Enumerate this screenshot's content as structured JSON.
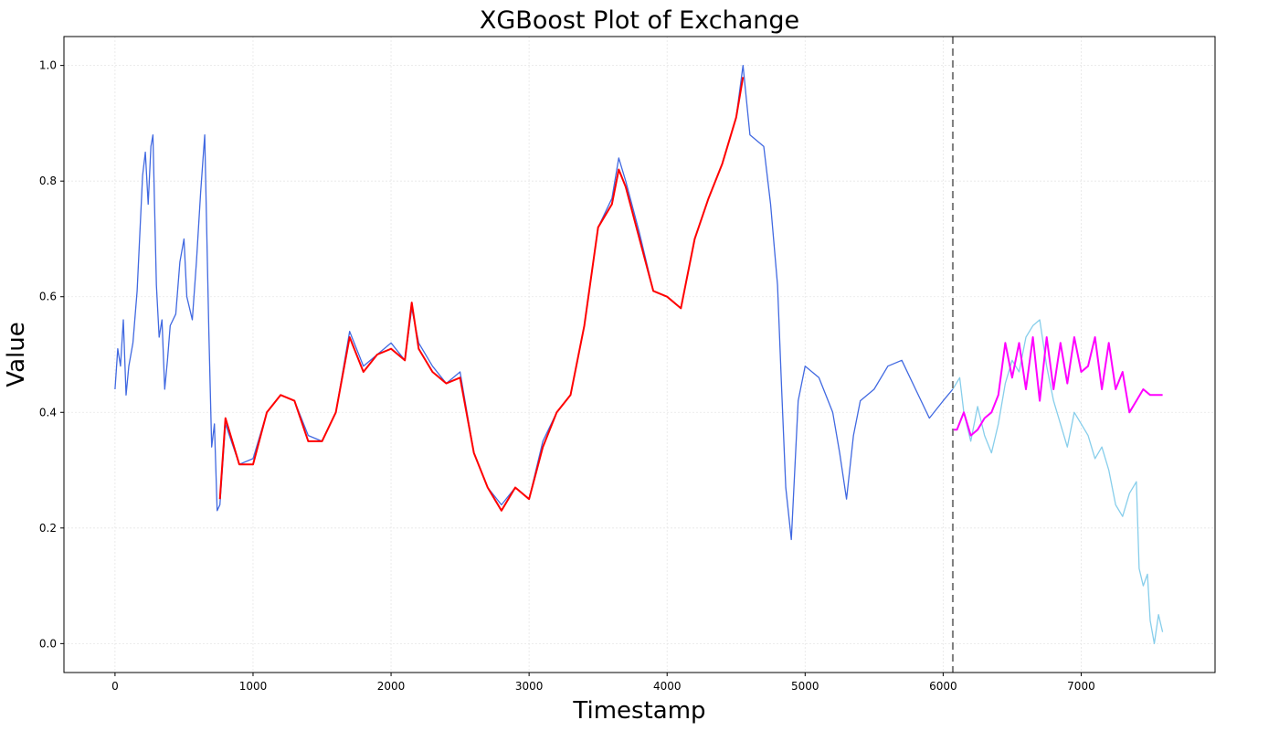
{
  "chart_data": {
    "type": "line",
    "title": "XGBoost Plot of Exchange",
    "xlabel": "Timestamp",
    "ylabel": "Value",
    "xlim": [
      -370,
      7970
    ],
    "ylim": [
      -0.05,
      1.05
    ],
    "xticks": [
      0,
      1000,
      2000,
      3000,
      4000,
      5000,
      6000,
      7000
    ],
    "yticks": [
      0.0,
      0.2,
      0.4,
      0.6,
      0.8,
      1.0
    ],
    "grid": true,
    "legend": "none",
    "split_x": 6070,
    "series": [
      {
        "role": "train-actual",
        "color": "#4169E1",
        "points": [
          [
            0,
            0.44
          ],
          [
            20,
            0.51
          ],
          [
            40,
            0.48
          ],
          [
            60,
            0.56
          ],
          [
            80,
            0.43
          ],
          [
            100,
            0.48
          ],
          [
            130,
            0.52
          ],
          [
            160,
            0.61
          ],
          [
            180,
            0.71
          ],
          [
            200,
            0.81
          ],
          [
            220,
            0.85
          ],
          [
            240,
            0.76
          ],
          [
            260,
            0.86
          ],
          [
            275,
            0.88
          ],
          [
            300,
            0.62
          ],
          [
            320,
            0.53
          ],
          [
            340,
            0.56
          ],
          [
            360,
            0.44
          ],
          [
            380,
            0.49
          ],
          [
            400,
            0.55
          ],
          [
            440,
            0.57
          ],
          [
            470,
            0.66
          ],
          [
            500,
            0.7
          ],
          [
            520,
            0.6
          ],
          [
            560,
            0.56
          ],
          [
            590,
            0.66
          ],
          [
            620,
            0.78
          ],
          [
            650,
            0.88
          ],
          [
            680,
            0.54
          ],
          [
            700,
            0.34
          ],
          [
            720,
            0.38
          ],
          [
            740,
            0.23
          ],
          [
            760,
            0.24
          ],
          [
            800,
            0.38
          ],
          [
            900,
            0.31
          ],
          [
            1000,
            0.32
          ],
          [
            1100,
            0.4
          ],
          [
            1200,
            0.43
          ],
          [
            1300,
            0.42
          ],
          [
            1400,
            0.36
          ],
          [
            1500,
            0.35
          ],
          [
            1600,
            0.4
          ],
          [
            1700,
            0.54
          ],
          [
            1800,
            0.48
          ],
          [
            1900,
            0.5
          ],
          [
            2000,
            0.52
          ],
          [
            2100,
            0.49
          ],
          [
            2150,
            0.58
          ],
          [
            2200,
            0.52
          ],
          [
            2300,
            0.48
          ],
          [
            2400,
            0.45
          ],
          [
            2500,
            0.47
          ],
          [
            2600,
            0.33
          ],
          [
            2700,
            0.27
          ],
          [
            2800,
            0.24
          ],
          [
            2900,
            0.27
          ],
          [
            3000,
            0.25
          ],
          [
            3100,
            0.35
          ],
          [
            3200,
            0.4
          ],
          [
            3300,
            0.43
          ],
          [
            3400,
            0.55
          ],
          [
            3500,
            0.72
          ],
          [
            3600,
            0.77
          ],
          [
            3650,
            0.84
          ],
          [
            3700,
            0.8
          ],
          [
            3800,
            0.71
          ],
          [
            3900,
            0.61
          ],
          [
            4000,
            0.6
          ],
          [
            4100,
            0.58
          ],
          [
            4200,
            0.7
          ],
          [
            4300,
            0.77
          ],
          [
            4400,
            0.83
          ],
          [
            4500,
            0.91
          ],
          [
            4550,
            1.0
          ],
          [
            4600,
            0.88
          ],
          [
            4700,
            0.86
          ],
          [
            4750,
            0.76
          ],
          [
            4800,
            0.62
          ],
          [
            4830,
            0.44
          ],
          [
            4860,
            0.27
          ],
          [
            4900,
            0.18
          ],
          [
            4950,
            0.42
          ],
          [
            5000,
            0.48
          ],
          [
            5100,
            0.46
          ],
          [
            5200,
            0.4
          ],
          [
            5250,
            0.33
          ],
          [
            5300,
            0.25
          ],
          [
            5350,
            0.36
          ],
          [
            5400,
            0.42
          ],
          [
            5500,
            0.44
          ],
          [
            5600,
            0.48
          ],
          [
            5700,
            0.49
          ],
          [
            5800,
            0.44
          ],
          [
            5900,
            0.39
          ],
          [
            6000,
            0.42
          ],
          [
            6070,
            0.44
          ]
        ]
      },
      {
        "role": "train-prediction",
        "color": "#FF0000",
        "points": [
          [
            760,
            0.25
          ],
          [
            800,
            0.39
          ],
          [
            900,
            0.31
          ],
          [
            1000,
            0.31
          ],
          [
            1100,
            0.4
          ],
          [
            1200,
            0.43
          ],
          [
            1300,
            0.42
          ],
          [
            1400,
            0.35
          ],
          [
            1500,
            0.35
          ],
          [
            1600,
            0.4
          ],
          [
            1700,
            0.53
          ],
          [
            1800,
            0.47
          ],
          [
            1900,
            0.5
          ],
          [
            2000,
            0.51
          ],
          [
            2100,
            0.49
          ],
          [
            2150,
            0.59
          ],
          [
            2200,
            0.51
          ],
          [
            2300,
            0.47
          ],
          [
            2400,
            0.45
          ],
          [
            2500,
            0.46
          ],
          [
            2600,
            0.33
          ],
          [
            2700,
            0.27
          ],
          [
            2800,
            0.23
          ],
          [
            2900,
            0.27
          ],
          [
            3000,
            0.25
          ],
          [
            3100,
            0.34
          ],
          [
            3200,
            0.4
          ],
          [
            3300,
            0.43
          ],
          [
            3400,
            0.55
          ],
          [
            3500,
            0.72
          ],
          [
            3600,
            0.76
          ],
          [
            3650,
            0.82
          ],
          [
            3700,
            0.79
          ],
          [
            3800,
            0.7
          ],
          [
            3900,
            0.61
          ],
          [
            4000,
            0.6
          ],
          [
            4100,
            0.58
          ],
          [
            4200,
            0.7
          ],
          [
            4300,
            0.77
          ],
          [
            4400,
            0.83
          ],
          [
            4500,
            0.91
          ],
          [
            4550,
            0.98
          ]
        ]
      },
      {
        "role": "test-actual",
        "color": "#87CEEB",
        "points": [
          [
            6070,
            0.44
          ],
          [
            6120,
            0.46
          ],
          [
            6150,
            0.4
          ],
          [
            6200,
            0.35
          ],
          [
            6250,
            0.41
          ],
          [
            6300,
            0.36
          ],
          [
            6350,
            0.33
          ],
          [
            6400,
            0.38
          ],
          [
            6450,
            0.45
          ],
          [
            6500,
            0.49
          ],
          [
            6550,
            0.47
          ],
          [
            6600,
            0.53
          ],
          [
            6650,
            0.55
          ],
          [
            6700,
            0.56
          ],
          [
            6750,
            0.48
          ],
          [
            6800,
            0.42
          ],
          [
            6850,
            0.38
          ],
          [
            6900,
            0.34
          ],
          [
            6950,
            0.4
          ],
          [
            7000,
            0.38
          ],
          [
            7050,
            0.36
          ],
          [
            7100,
            0.32
          ],
          [
            7150,
            0.34
          ],
          [
            7200,
            0.3
          ],
          [
            7250,
            0.24
          ],
          [
            7300,
            0.22
          ],
          [
            7350,
            0.26
          ],
          [
            7400,
            0.28
          ],
          [
            7420,
            0.13
          ],
          [
            7450,
            0.1
          ],
          [
            7480,
            0.12
          ],
          [
            7500,
            0.04
          ],
          [
            7530,
            0.0
          ],
          [
            7560,
            0.05
          ],
          [
            7590,
            0.02
          ]
        ]
      },
      {
        "role": "test-prediction",
        "color": "#FF00FF",
        "points": [
          [
            6070,
            0.37
          ],
          [
            6100,
            0.37
          ],
          [
            6150,
            0.4
          ],
          [
            6200,
            0.36
          ],
          [
            6250,
            0.37
          ],
          [
            6300,
            0.39
          ],
          [
            6350,
            0.4
          ],
          [
            6400,
            0.43
          ],
          [
            6450,
            0.52
          ],
          [
            6500,
            0.46
          ],
          [
            6550,
            0.52
          ],
          [
            6600,
            0.44
          ],
          [
            6650,
            0.53
          ],
          [
            6700,
            0.42
          ],
          [
            6750,
            0.53
          ],
          [
            6800,
            0.44
          ],
          [
            6850,
            0.52
          ],
          [
            6900,
            0.45
          ],
          [
            6950,
            0.53
          ],
          [
            7000,
            0.47
          ],
          [
            7050,
            0.48
          ],
          [
            7100,
            0.53
          ],
          [
            7150,
            0.44
          ],
          [
            7200,
            0.52
          ],
          [
            7250,
            0.44
          ],
          [
            7300,
            0.47
          ],
          [
            7350,
            0.4
          ],
          [
            7400,
            0.42
          ],
          [
            7450,
            0.44
          ],
          [
            7500,
            0.43
          ],
          [
            7550,
            0.43
          ],
          [
            7590,
            0.43
          ]
        ]
      }
    ]
  }
}
